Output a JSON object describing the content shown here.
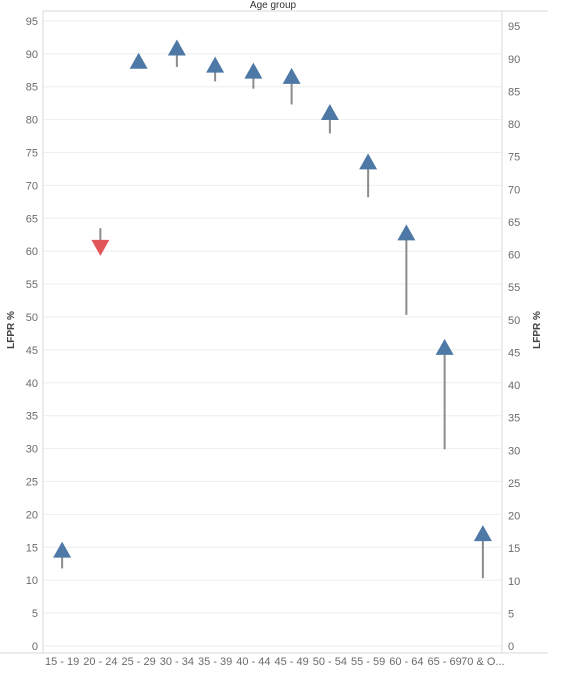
{
  "chart_data": {
    "type": "scatter",
    "title": "Age group",
    "ylabel_left": "LFPR %",
    "ylabel_right": "LFPR %",
    "ylim": [
      0,
      97
    ],
    "yticks_left": [
      0,
      5,
      10,
      15,
      20,
      25,
      30,
      35,
      40,
      45,
      50,
      55,
      60,
      65,
      70,
      75,
      80,
      85,
      90,
      95
    ],
    "yticks_right": [
      0,
      5,
      10,
      15,
      20,
      25,
      30,
      35,
      40,
      45,
      50,
      55,
      60,
      65,
      70,
      75,
      80,
      85,
      90,
      95
    ],
    "categories": [
      "15 - 19",
      "20 - 24",
      "25 - 29",
      "30 - 34",
      "35 - 39",
      "40 - 44",
      "45 - 49",
      "50 - 54",
      "55 - 59",
      "60 - 64",
      "65 - 69",
      "70 & O..."
    ],
    "series": [
      {
        "values": [
          14.5,
          60.5,
          88.8,
          90.8,
          88.2,
          87.3,
          86.5,
          81.0,
          73.5,
          62.7,
          45.3,
          17.0
        ],
        "previous": [
          11.8,
          63.5,
          88.8,
          88.0,
          85.8,
          84.7,
          82.3,
          77.9,
          68.2,
          50.3,
          29.9,
          10.3
        ],
        "direction": [
          "up",
          "down",
          "up",
          "up",
          "up",
          "up",
          "up",
          "up",
          "up",
          "up",
          "up",
          "up"
        ]
      }
    ],
    "colors": {
      "increase": "#4e79a7",
      "decrease": "#e15759",
      "change_line": "#8c8c8c",
      "gridline": "#eeeeee",
      "axis_line": "#d9d9d9"
    },
    "grid": true
  }
}
